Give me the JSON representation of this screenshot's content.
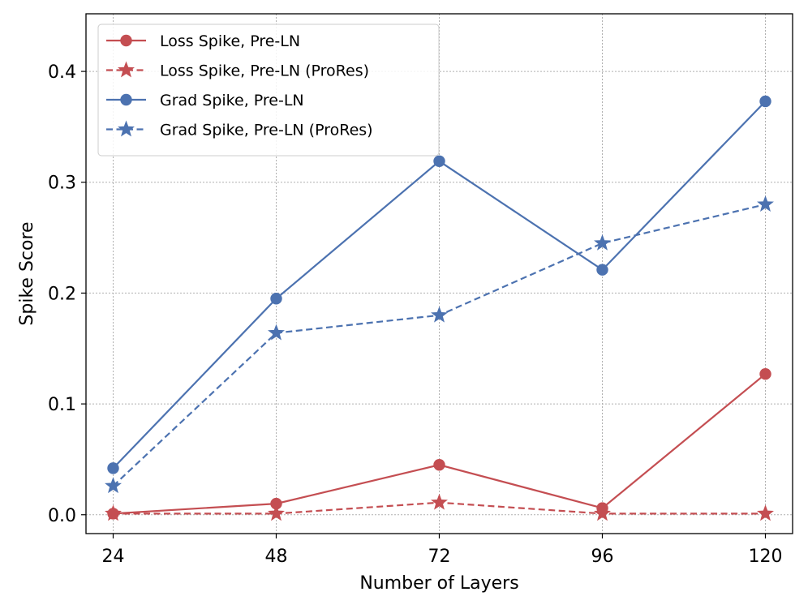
{
  "chart_data": {
    "type": "line",
    "title": "",
    "xlabel": "Number of Layers",
    "ylabel": "Spike Score",
    "x": [
      24,
      48,
      72,
      96,
      120
    ],
    "x_tick_labels": [
      "24",
      "48",
      "72",
      "96",
      "120"
    ],
    "xlim": [
      20,
      124
    ],
    "ylim": [
      -0.017,
      0.452
    ],
    "y_ticks": [
      0.0,
      0.1,
      0.2,
      0.3,
      0.4
    ],
    "y_tick_labels": [
      "0.0",
      "0.1",
      "0.2",
      "0.3",
      "0.4"
    ],
    "grid": true,
    "grid_style": "dotted",
    "legend_position": "top-left",
    "series": [
      {
        "name": "Loss Spike, Pre-LN",
        "values": [
          0.001,
          0.01,
          0.045,
          0.006,
          0.127
        ],
        "color": "#c44e52",
        "line_style": "solid",
        "marker": "circle"
      },
      {
        "name": "Loss Spike, Pre-LN (ProRes)",
        "values": [
          0.001,
          0.001,
          0.011,
          0.001,
          0.001
        ],
        "color": "#c44e52",
        "line_style": "dashed",
        "marker": "star"
      },
      {
        "name": "Grad Spike, Pre-LN",
        "values": [
          0.042,
          0.195,
          0.319,
          0.221,
          0.373
        ],
        "color": "#4c72b0",
        "line_style": "solid",
        "marker": "circle"
      },
      {
        "name": "Grad Spike, Pre-LN (ProRes)",
        "values": [
          0.026,
          0.164,
          0.18,
          0.245,
          0.28
        ],
        "color": "#4c72b0",
        "line_style": "dashed",
        "marker": "star"
      }
    ]
  }
}
